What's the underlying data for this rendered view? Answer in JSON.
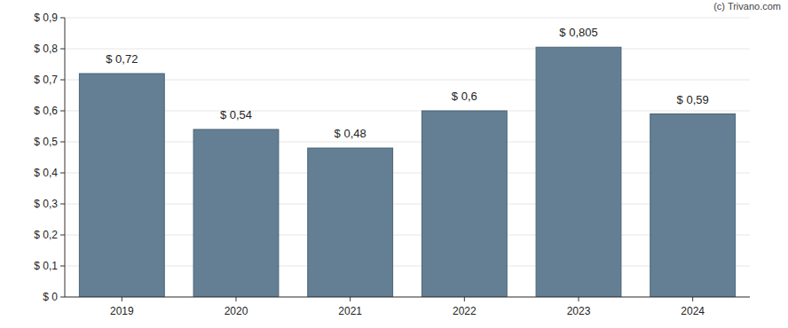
{
  "chart_data": {
    "type": "bar",
    "categories": [
      "2019",
      "2020",
      "2021",
      "2022",
      "2023",
      "2024"
    ],
    "values": [
      0.72,
      0.54,
      0.48,
      0.6,
      0.805,
      0.59
    ],
    "value_labels": [
      "$ 0,72",
      "$ 0,54",
      "$ 0,48",
      "$ 0,6",
      "$ 0,805",
      "$ 0,59"
    ],
    "color": "#647f93",
    "ylim": [
      0,
      0.9
    ],
    "yticks": [
      {
        "value": 0,
        "label": "$ 0"
      },
      {
        "value": 0.1,
        "label": "$ 0,1"
      },
      {
        "value": 0.2,
        "label": "$ 0,2"
      },
      {
        "value": 0.3,
        "label": "$ 0,3"
      },
      {
        "value": 0.4,
        "label": "$ 0,4"
      },
      {
        "value": 0.5,
        "label": "$ 0,5"
      },
      {
        "value": 0.6,
        "label": "$ 0,6"
      },
      {
        "value": 0.7,
        "label": "$ 0,7"
      },
      {
        "value": 0.8,
        "label": "$ 0,8"
      },
      {
        "value": 0.9,
        "label": "$ 0,9"
      }
    ],
    "grid": true,
    "data_labels": true,
    "annotations": [
      "(c) Trivano.com"
    ]
  }
}
